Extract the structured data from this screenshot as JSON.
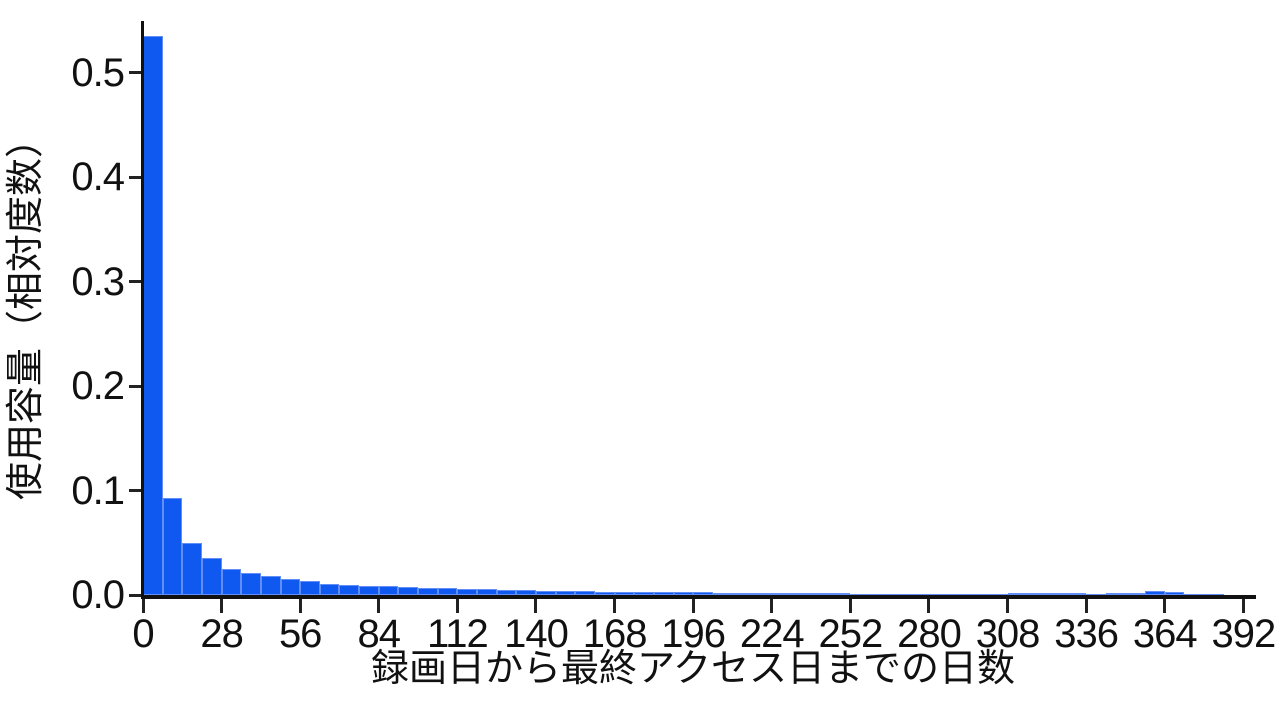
{
  "chart_data": {
    "type": "bar",
    "subtype": "histogram",
    "title": "",
    "xlabel": "録画日から最終アクセス日までの日数",
    "ylabel": "使用容量（相対度数）",
    "bin_width_days": 7,
    "bin_start_day": 0,
    "values": [
      0.535,
      0.093,
      0.05,
      0.035,
      0.025,
      0.021,
      0.018,
      0.015,
      0.013,
      0.011,
      0.01,
      0.009,
      0.0085,
      0.008,
      0.007,
      0.0065,
      0.006,
      0.0055,
      0.005,
      0.0045,
      0.004,
      0.0037,
      0.0035,
      0.0033,
      0.0032,
      0.003,
      0.0028,
      0.0027,
      0.0025,
      0.0023,
      0.0021,
      0.002,
      0.0018,
      0.0017,
      0.0016,
      0.0015,
      0.0014,
      0.0013,
      0.0012,
      0.0012,
      0.0011,
      0.001,
      0.001,
      0.001,
      0.0015,
      0.0018,
      0.0018,
      0.0015,
      0.0012,
      0.0018,
      0.0022,
      0.004,
      0.003,
      0.0012,
      0.0006,
      0.0004
    ],
    "xlim": [
      0,
      396.5
    ],
    "ylim": [
      0,
      0.5475
    ],
    "xtick_days": [
      0,
      28,
      56,
      84,
      112,
      140,
      168,
      196,
      224,
      252,
      280,
      308,
      336,
      364,
      392
    ],
    "xtick_labels": [
      "0",
      "28",
      "56",
      "84",
      "112",
      "140",
      "168",
      "196",
      "224",
      "252",
      "280",
      "308",
      "336",
      "364",
      "392"
    ],
    "ytick_values": [
      0.0,
      0.1,
      0.2,
      0.3,
      0.4,
      0.5
    ],
    "ytick_labels": [
      "0.0",
      "0.1",
      "0.2",
      "0.3",
      "0.4",
      "0.5"
    ],
    "grid": false,
    "legend": null,
    "bar_color": "#0F58F0",
    "bar_edge_color": "#7DA2FA",
    "axis_color": "#111111",
    "text_color": "#111111",
    "background_color": "#FFFFFF"
  }
}
